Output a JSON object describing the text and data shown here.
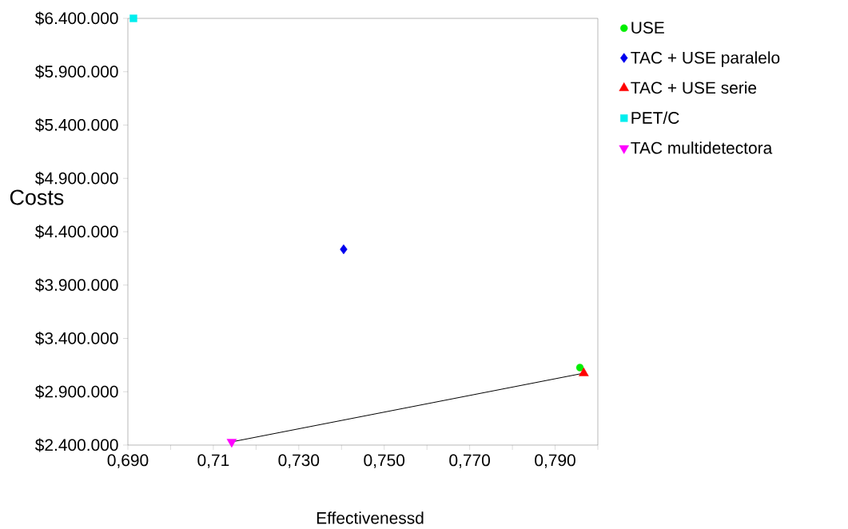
{
  "chart_data": {
    "type": "scatter",
    "xlabel": "Effectivenessd",
    "ylabel": "Costs",
    "xlim": [
      0.69,
      0.8
    ],
    "ylim": [
      2400000,
      6400000
    ],
    "xticks": [
      {
        "value": 0.69,
        "label": "0,690"
      },
      {
        "value": 0.7,
        "label": null
      },
      {
        "value": 0.71,
        "label": "0,71"
      },
      {
        "value": 0.72,
        "label": null
      },
      {
        "value": 0.73,
        "label": "0,730"
      },
      {
        "value": 0.74,
        "label": null
      },
      {
        "value": 0.75,
        "label": "0,750"
      },
      {
        "value": 0.76,
        "label": null
      },
      {
        "value": 0.77,
        "label": "0,770"
      },
      {
        "value": 0.78,
        "label": null
      },
      {
        "value": 0.79,
        "label": "0,790"
      },
      {
        "value": 0.8,
        "label": null
      }
    ],
    "yticks": [
      {
        "value": 2400000,
        "label": "$2.400.000"
      },
      {
        "value": 2900000,
        "label": "$2.900.000"
      },
      {
        "value": 3400000,
        "label": "$3.400.000"
      },
      {
        "value": 3900000,
        "label": "$3.900.000"
      },
      {
        "value": 4400000,
        "label": "$4.400.000"
      },
      {
        "value": 4900000,
        "label": "$4.900.000"
      },
      {
        "value": 5400000,
        "label": "$5.400.000"
      },
      {
        "value": 5900000,
        "label": "$5.900.000"
      },
      {
        "value": 6400000,
        "label": "$6.400.000"
      }
    ],
    "legend": "right",
    "grid": false,
    "series": [
      {
        "name": "USE",
        "color": "#00ee00",
        "marker": "circle",
        "x": [
          0.7958
        ],
        "values": [
          3127000
        ]
      },
      {
        "name": "TAC + USE paralelo",
        "color": "#0000ee",
        "marker": "diamond",
        "x": [
          0.7405
        ],
        "values": [
          4235000
        ]
      },
      {
        "name": "TAC + USE serie",
        "color": "#ff0000",
        "marker": "triangle",
        "x": [
          0.7967
        ],
        "values": [
          3074000
        ]
      },
      {
        "name": "PET/C",
        "color": "#00eeee",
        "marker": "square",
        "x": [
          0.6913
        ],
        "values": [
          6400000
        ]
      },
      {
        "name": "TAC multidetectora",
        "color": "#ff00ff",
        "marker": "triangle-down",
        "x": [
          0.7143
        ],
        "values": [
          2430000
        ]
      },
      {
        "type": "line",
        "color": "#000000",
        "marker": "none",
        "x": [
          0.7143,
          0.7967
        ],
        "values": [
          2430000,
          3074000
        ]
      }
    ]
  }
}
